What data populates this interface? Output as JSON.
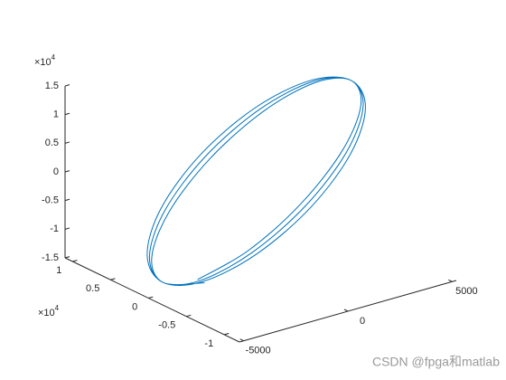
{
  "chart_data": {
    "type": "line3d",
    "color": "#0072BD",
    "x": [
      -3897,
      -2250,
      0,
      2250,
      3897,
      4500,
      3897,
      2250,
      0,
      -2250,
      -3897,
      -4500,
      -3897,
      -2250,
      0,
      2250,
      3897,
      4500,
      3897,
      2250,
      0,
      -2250,
      -3897,
      -4500,
      -3897,
      -2250,
      0,
      2250,
      3897,
      4500,
      3897,
      2250,
      0,
      -2250,
      -3897,
      -4500,
      -3897
    ],
    "y": [
      -2900,
      -5066,
      -5900,
      -5153,
      -3000,
      0,
      3050,
      5326,
      6200,
      5413,
      3150,
      0,
      -3200,
      -5586,
      -6500,
      -5672,
      -3300,
      0,
      3350,
      5846,
      6800,
      5932,
      3450,
      0,
      -3500,
      -6105,
      -7100,
      -6192,
      -3600,
      0,
      3650,
      6365,
      7400,
      6452,
      3750,
      0,
      -3800
    ],
    "z": [
      -11258,
      -6500,
      0,
      6500,
      11258,
      13000,
      11258,
      6500,
      0,
      -6500,
      -11258,
      -13000,
      -11258,
      -6500,
      0,
      6500,
      11258,
      13000,
      11258,
      6500,
      0,
      -6500,
      -11258,
      -13000,
      -11258,
      -6500,
      0,
      6500,
      11258,
      13000,
      11258,
      6500,
      0,
      -6500,
      -11258,
      -13000,
      -11258
    ],
    "xlim": [
      -5200,
      5200
    ],
    "ylim": [
      -12000,
      11000
    ],
    "zlim": [
      -15000,
      15000
    ],
    "xticks": [
      -5000,
      0,
      5000
    ],
    "yticks": [
      {
        "value": 10000,
        "label": "1"
      },
      {
        "value": 5000,
        "label": "0.5"
      },
      0,
      {
        "value": -5000,
        "label": "-0.5"
      },
      {
        "value": -10000,
        "label": "-1"
      }
    ],
    "zticks": [
      {
        "value": 15000,
        "label": "1.5"
      },
      {
        "value": 10000,
        "label": "1"
      },
      {
        "value": 5000,
        "label": "0.5"
      },
      0,
      {
        "value": -5000,
        "label": "-0.5"
      },
      {
        "value": -10000,
        "label": "-1"
      },
      {
        "value": -15000,
        "label": "-1.5"
      }
    ],
    "y_multiplier": {
      "base": "×10",
      "power": "4"
    },
    "z_multiplier": {
      "base": "×10",
      "power": "4"
    }
  },
  "watermark": "CSDN @fpga和matlab"
}
